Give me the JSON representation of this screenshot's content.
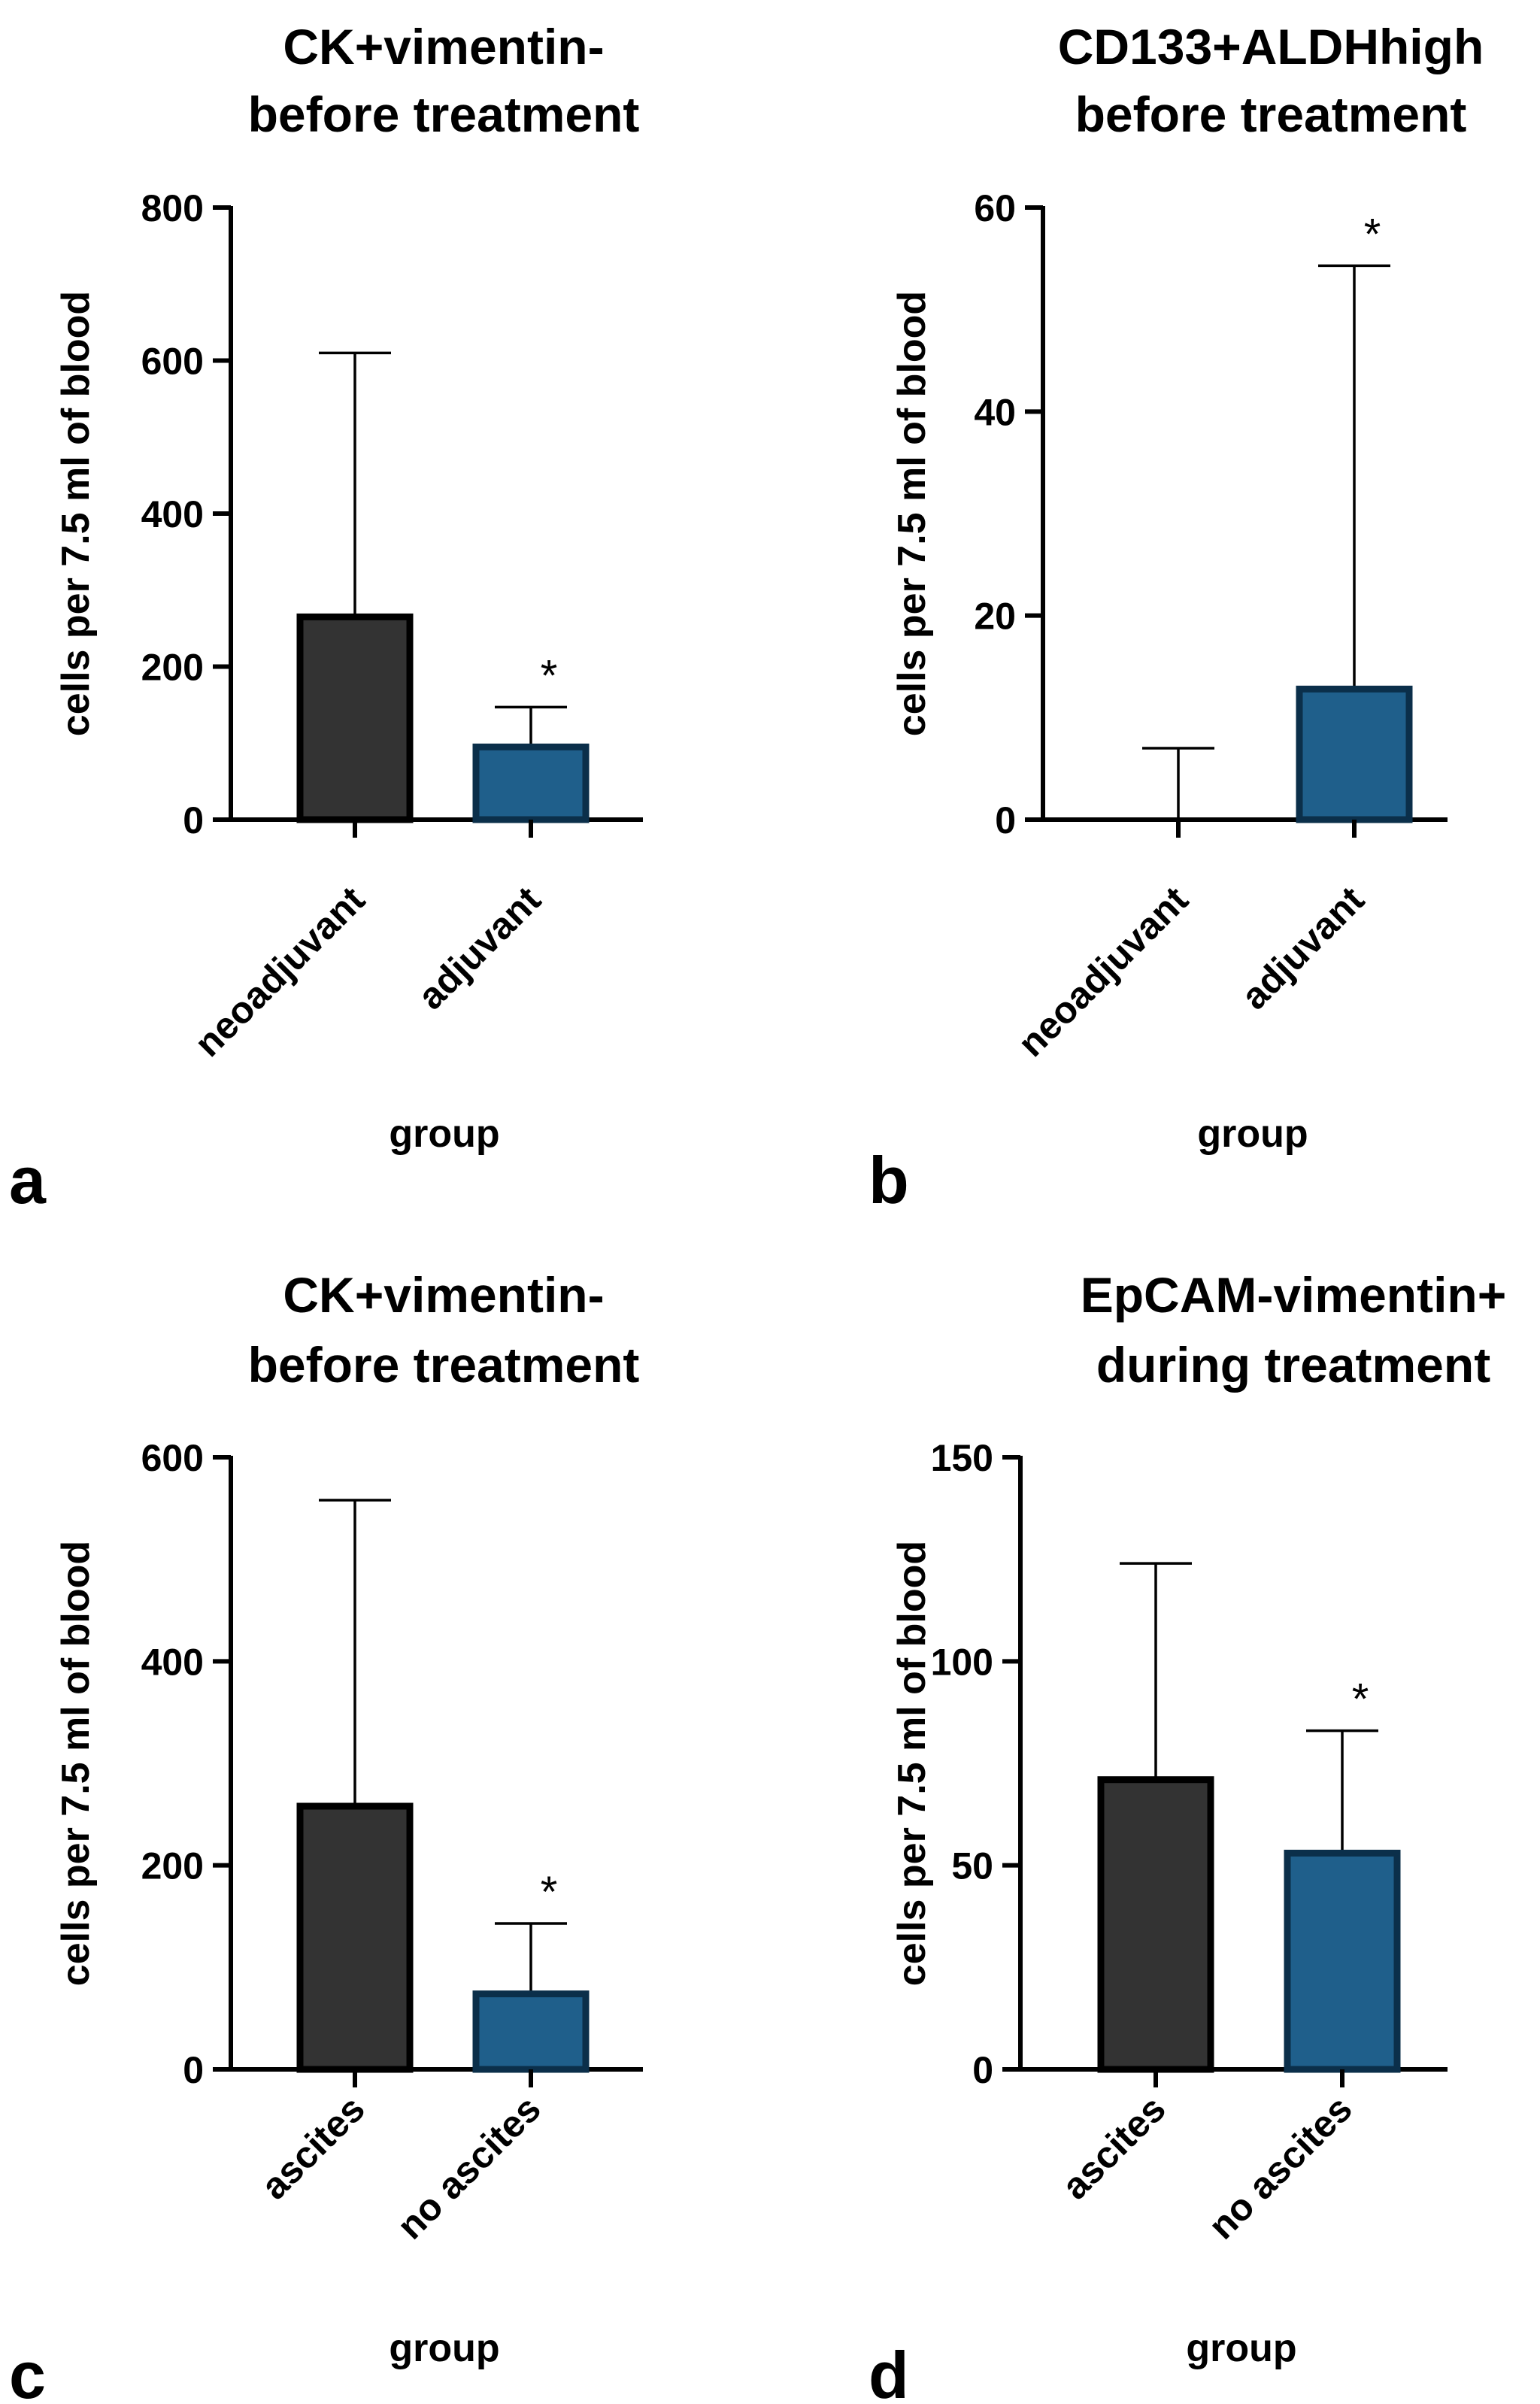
{
  "chart_data": [
    {
      "type": "bar",
      "panel": "a",
      "title_lines": [
        "CK+vimentin-",
        "before treatment"
      ],
      "xlabel": "group",
      "ylabel": "cells per 7.5 ml of blood",
      "ylim": [
        0,
        800
      ],
      "yticks": [
        0,
        200,
        400,
        600,
        800
      ],
      "categories": [
        "neoadjuvant",
        "adjuvant"
      ],
      "values": [
        265,
        95
      ],
      "error_upper": [
        610,
        147
      ],
      "significance": [
        "",
        "*"
      ],
      "colors": [
        "#333333",
        "#1f5f8b"
      ]
    },
    {
      "type": "bar",
      "panel": "b",
      "title_lines": [
        "CD133+ALDHhigh",
        "before treatment"
      ],
      "xlabel": "group",
      "ylabel": "cells per 7.5 ml of blood",
      "ylim": [
        0,
        60
      ],
      "yticks": [
        0,
        20,
        40,
        60
      ],
      "categories": [
        "neoadjuvant",
        "adjuvant"
      ],
      "values": [
        0,
        12.8
      ],
      "error_upper": [
        7,
        54.3
      ],
      "significance": [
        "",
        "*"
      ],
      "colors": [
        "#333333",
        "#1f5f8b"
      ]
    },
    {
      "type": "bar",
      "panel": "c",
      "title_lines": [
        "CK+vimentin-",
        "before treatment"
      ],
      "xlabel": "group",
      "ylabel": "cells per 7.5 ml of blood",
      "ylim": [
        0,
        600
      ],
      "yticks": [
        0,
        200,
        400,
        600
      ],
      "categories": [
        "ascites",
        "no ascites"
      ],
      "values": [
        258,
        74
      ],
      "error_upper": [
        558,
        143
      ],
      "significance": [
        "",
        "*"
      ],
      "colors": [
        "#333333",
        "#1f5f8b"
      ]
    },
    {
      "type": "bar",
      "panel": "d",
      "title_lines": [
        "EpCAM-vimentin+",
        "during treatment"
      ],
      "xlabel": "group",
      "ylabel": "cells per 7.5 ml of blood",
      "ylim": [
        0,
        150
      ],
      "yticks": [
        0,
        50,
        100,
        150
      ],
      "categories": [
        "ascites",
        "no ascites"
      ],
      "values": [
        71,
        53
      ],
      "error_upper": [
        124,
        83
      ],
      "significance": [
        "",
        "*"
      ],
      "colors": [
        "#333333",
        "#1f5f8b"
      ]
    }
  ]
}
